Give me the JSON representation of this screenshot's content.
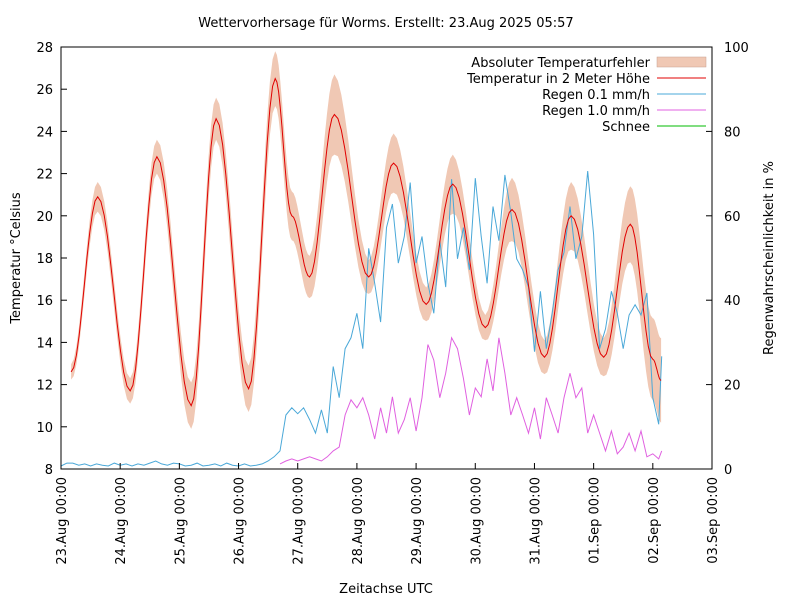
{
  "chart_data": {
    "type": "line",
    "title": "Wettervorhersage für Worms. Erstellt: 23.Aug 2025 05:57",
    "xlabel": "Zeitachse UTC",
    "ylabel": "Temperatur °Celsius",
    "y2label": "Regenwahrscheinlichkeit in %",
    "xlim": [
      0,
      11
    ],
    "x_unit": "days since 23.Aug 00:00 UTC",
    "x_ticks": [
      0,
      1,
      2,
      3,
      4,
      5,
      6,
      7,
      8,
      9,
      10,
      11
    ],
    "x_tick_labels": [
      "23.Aug 00:00",
      "24.Aug 00:00",
      "25.Aug 00:00",
      "26.Aug 00:00",
      "27.Aug 00:00",
      "28.Aug 00:00",
      "29.Aug 00:00",
      "30.Aug 00:00",
      "31.Aug 00:00",
      "01.Sep 00:00",
      "02.Sep 00:00",
      "03.Sep 00:00"
    ],
    "ylim": [
      8,
      28
    ],
    "y_ticks": [
      8,
      10,
      12,
      14,
      16,
      18,
      20,
      22,
      24,
      26,
      28
    ],
    "y2lim": [
      0,
      100
    ],
    "y2_ticks": [
      0,
      20,
      40,
      60,
      80,
      100
    ],
    "legend_position": "top-right",
    "legend": [
      {
        "label": "Absoluter Temperaturfehler",
        "color": "#f0c8b4",
        "kind": "band"
      },
      {
        "label": "Temperatur in 2 Meter Höhe",
        "color": "#e00000",
        "kind": "line"
      },
      {
        "label": "Regen 0.1 mm/h",
        "color": "#4aa8d8",
        "kind": "line"
      },
      {
        "label": "Regen 1.0 mm/h",
        "color": "#e060e0",
        "kind": "line"
      },
      {
        "label": "Schnee",
        "color": "#00bb00",
        "kind": "line"
      }
    ],
    "temperature_keypoints": [
      [
        0.17,
        12.6
      ],
      [
        0.62,
        20.9
      ],
      [
        1.17,
        11.7
      ],
      [
        1.62,
        22.8
      ],
      [
        2.2,
        11.0
      ],
      [
        2.62,
        24.6
      ],
      [
        3.17,
        11.8
      ],
      [
        3.62,
        26.5
      ],
      [
        3.9,
        20
      ],
      [
        4.2,
        17.1
      ],
      [
        4.62,
        24.8
      ],
      [
        5.2,
        17.1
      ],
      [
        5.62,
        22.5
      ],
      [
        6.17,
        15.8
      ],
      [
        6.62,
        21.5
      ],
      [
        7.17,
        14.7
      ],
      [
        7.62,
        20.3
      ],
      [
        8.17,
        13.3
      ],
      [
        8.62,
        20.0
      ],
      [
        9.17,
        13.3
      ],
      [
        9.62,
        19.6
      ],
      [
        10.0,
        13.2
      ],
      [
        10.14,
        12.2
      ]
    ],
    "temperature_error_band": [
      [
        0.15,
        0.35
      ],
      [
        0.62,
        0.7
      ],
      [
        1.17,
        0.6
      ],
      [
        1.62,
        0.8
      ],
      [
        2.2,
        1.1
      ],
      [
        2.62,
        1.0
      ],
      [
        3.17,
        1.1
      ],
      [
        3.62,
        1.3
      ],
      [
        4.2,
        1.0
      ],
      [
        4.62,
        1.9
      ],
      [
        5.2,
        0.8
      ],
      [
        5.62,
        1.4
      ],
      [
        6.17,
        0.8
      ],
      [
        6.62,
        1.4
      ],
      [
        7.17,
        0.6
      ],
      [
        7.62,
        1.5
      ],
      [
        8.17,
        0.8
      ],
      [
        8.62,
        1.6
      ],
      [
        9.17,
        0.9
      ],
      [
        9.62,
        1.8
      ],
      [
        10.14,
        2.0
      ]
    ],
    "rain_01_percent": [
      [
        0.0,
        0.7
      ],
      [
        0.1,
        1.4
      ],
      [
        0.2,
        1.4
      ],
      [
        0.3,
        0.9
      ],
      [
        0.4,
        1.2
      ],
      [
        0.5,
        0.7
      ],
      [
        0.6,
        1.2
      ],
      [
        0.7,
        0.9
      ],
      [
        0.8,
        0.7
      ],
      [
        0.9,
        1.4
      ],
      [
        1.0,
        0.9
      ],
      [
        1.1,
        1.2
      ],
      [
        1.2,
        0.7
      ],
      [
        1.3,
        1.2
      ],
      [
        1.4,
        0.9
      ],
      [
        1.5,
        1.4
      ],
      [
        1.6,
        1.9
      ],
      [
        1.7,
        1.2
      ],
      [
        1.8,
        0.9
      ],
      [
        1.9,
        1.4
      ],
      [
        2.0,
        1.2
      ],
      [
        2.1,
        0.7
      ],
      [
        2.2,
        0.9
      ],
      [
        2.3,
        1.4
      ],
      [
        2.4,
        0.7
      ],
      [
        2.5,
        0.9
      ],
      [
        2.6,
        1.2
      ],
      [
        2.7,
        0.7
      ],
      [
        2.8,
        1.4
      ],
      [
        2.9,
        0.9
      ],
      [
        3.0,
        0.7
      ],
      [
        3.1,
        1.2
      ],
      [
        3.2,
        0.7
      ],
      [
        3.3,
        0.9
      ],
      [
        3.4,
        1.2
      ],
      [
        3.5,
        1.9
      ],
      [
        3.6,
        2.9
      ],
      [
        3.7,
        4.3
      ],
      [
        3.8,
        12.8
      ],
      [
        3.9,
        14.5
      ],
      [
        4.0,
        13.1
      ],
      [
        4.1,
        14.5
      ],
      [
        4.2,
        11.7
      ],
      [
        4.3,
        8.5
      ],
      [
        4.4,
        14.0
      ],
      [
        4.5,
        8.5
      ],
      [
        4.6,
        24.3
      ],
      [
        4.7,
        16.9
      ],
      [
        4.8,
        28.5
      ],
      [
        4.9,
        31.1
      ],
      [
        5.0,
        36.9
      ],
      [
        5.1,
        28.5
      ],
      [
        5.2,
        52.3
      ],
      [
        5.3,
        44.0
      ],
      [
        5.4,
        34.8
      ],
      [
        5.5,
        57.2
      ],
      [
        5.6,
        62.8
      ],
      [
        5.7,
        48.8
      ],
      [
        5.8,
        55.1
      ],
      [
        5.9,
        67.9
      ],
      [
        6.0,
        48.8
      ],
      [
        6.1,
        55.1
      ],
      [
        6.2,
        44.0
      ],
      [
        6.3,
        36.9
      ],
      [
        6.4,
        54.1
      ],
      [
        6.5,
        43.1
      ],
      [
        6.6,
        68.7
      ],
      [
        6.7,
        49.8
      ],
      [
        6.8,
        57.2
      ],
      [
        6.9,
        47.2
      ],
      [
        7.0,
        68.9
      ],
      [
        7.1,
        55.1
      ],
      [
        7.2,
        44.0
      ],
      [
        7.3,
        62.2
      ],
      [
        7.4,
        54.1
      ],
      [
        7.5,
        69.7
      ],
      [
        7.6,
        60.8
      ],
      [
        7.7,
        49.8
      ],
      [
        7.8,
        47.2
      ],
      [
        7.9,
        43.1
      ],
      [
        8.0,
        27.8
      ],
      [
        8.1,
        42.1
      ],
      [
        8.2,
        28.5
      ],
      [
        8.3,
        36.9
      ],
      [
        8.4,
        47.2
      ],
      [
        8.5,
        51.3
      ],
      [
        8.6,
        62.2
      ],
      [
        8.7,
        49.8
      ],
      [
        8.8,
        55.1
      ],
      [
        8.9,
        70.6
      ],
      [
        9.0,
        55.6
      ],
      [
        9.1,
        28.5
      ],
      [
        9.2,
        33.2
      ],
      [
        9.3,
        42.1
      ],
      [
        9.4,
        36.9
      ],
      [
        9.5,
        28.5
      ],
      [
        9.6,
        36.5
      ],
      [
        9.7,
        38.9
      ],
      [
        9.8,
        36.5
      ],
      [
        9.9,
        41.7
      ],
      [
        10.0,
        16.9
      ],
      [
        10.1,
        10.6
      ],
      [
        10.15,
        26.7
      ]
    ],
    "rain_10_percent": [
      [
        3.7,
        1.2
      ],
      [
        3.8,
        1.9
      ],
      [
        3.9,
        2.4
      ],
      [
        4.0,
        1.9
      ],
      [
        4.1,
        2.4
      ],
      [
        4.2,
        2.9
      ],
      [
        4.3,
        2.4
      ],
      [
        4.4,
        1.9
      ],
      [
        4.5,
        2.9
      ],
      [
        4.6,
        4.3
      ],
      [
        4.7,
        5.2
      ],
      [
        4.8,
        12.8
      ],
      [
        4.9,
        16.4
      ],
      [
        5.0,
        14.5
      ],
      [
        5.1,
        16.9
      ],
      [
        5.2,
        12.8
      ],
      [
        5.3,
        7.1
      ],
      [
        5.4,
        14.5
      ],
      [
        5.5,
        8.5
      ],
      [
        5.6,
        17.1
      ],
      [
        5.7,
        8.5
      ],
      [
        5.8,
        11.7
      ],
      [
        5.9,
        16.9
      ],
      [
        6.0,
        9.0
      ],
      [
        6.1,
        16.9
      ],
      [
        6.2,
        29.5
      ],
      [
        6.3,
        25.8
      ],
      [
        6.4,
        16.9
      ],
      [
        6.5,
        22.7
      ],
      [
        6.6,
        31.1
      ],
      [
        6.7,
        28.5
      ],
      [
        6.8,
        21.5
      ],
      [
        6.9,
        12.8
      ],
      [
        7.0,
        19.2
      ],
      [
        7.1,
        17.1
      ],
      [
        7.2,
        26.1
      ],
      [
        7.3,
        18.5
      ],
      [
        7.4,
        31.1
      ],
      [
        7.5,
        22.7
      ],
      [
        7.6,
        12.8
      ],
      [
        7.7,
        16.9
      ],
      [
        7.8,
        12.8
      ],
      [
        7.9,
        8.5
      ],
      [
        8.0,
        14.5
      ],
      [
        8.1,
        7.1
      ],
      [
        8.2,
        16.9
      ],
      [
        8.3,
        12.8
      ],
      [
        8.4,
        8.5
      ],
      [
        8.5,
        16.9
      ],
      [
        8.6,
        22.7
      ],
      [
        8.7,
        16.9
      ],
      [
        8.8,
        19.2
      ],
      [
        8.9,
        8.5
      ],
      [
        9.0,
        12.8
      ],
      [
        9.1,
        8.5
      ],
      [
        9.2,
        4.3
      ],
      [
        9.3,
        9.0
      ],
      [
        9.4,
        3.6
      ],
      [
        9.5,
        5.2
      ],
      [
        9.6,
        8.5
      ],
      [
        9.7,
        4.3
      ],
      [
        9.8,
        9.0
      ],
      [
        9.9,
        2.9
      ],
      [
        10.0,
        3.6
      ],
      [
        10.1,
        2.4
      ],
      [
        10.15,
        4.3
      ]
    ],
    "snow_percent": [
      [
        0.0,
        0
      ],
      [
        10.15,
        0
      ]
    ]
  }
}
